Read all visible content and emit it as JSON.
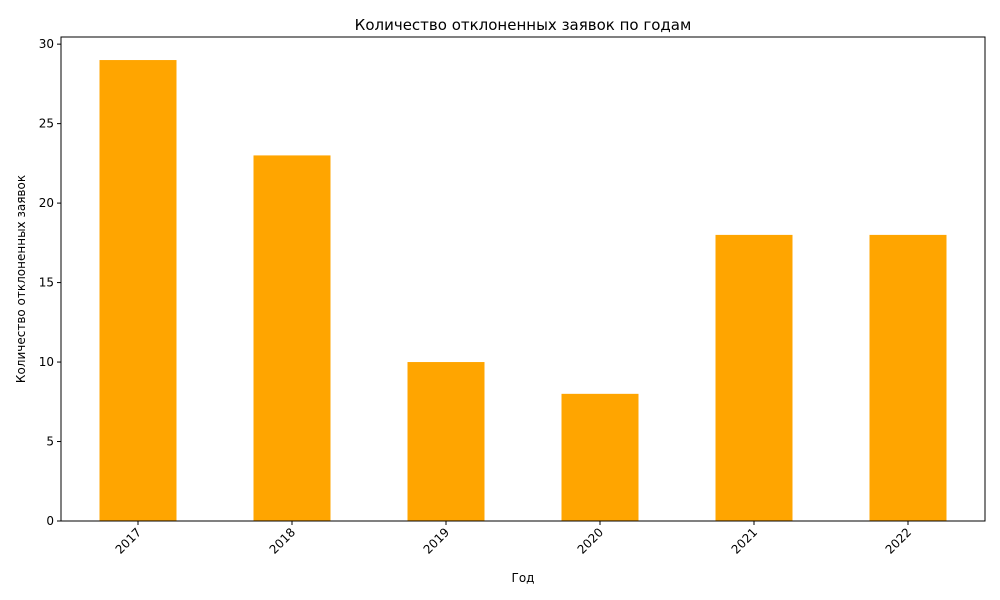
{
  "chart_data": {
    "type": "bar",
    "title": "Количество отклоненных заявок по годам",
    "xlabel": "Год",
    "ylabel": "Количество отклоненных заявок",
    "categories": [
      "2017",
      "2018",
      "2019",
      "2020",
      "2021",
      "2022"
    ],
    "values": [
      29,
      23,
      10,
      8,
      18,
      18
    ],
    "ylim": [
      0,
      30.45
    ],
    "yticks": [
      0,
      5,
      10,
      15,
      20,
      25,
      30
    ],
    "bar_color": "#FFA500",
    "grid": false,
    "legend": "none",
    "xtick_rotation_deg": 45
  }
}
